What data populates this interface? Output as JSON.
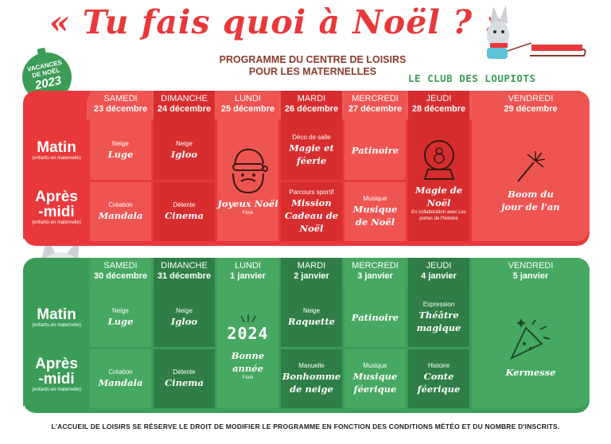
{
  "title": "« Tu fais quoi à Noël ? »",
  "subtitle_line1": "PROGRAMME DU CENTRE DE LOISIRS",
  "subtitle_line2": "POUR LES MATERNELLES",
  "club_name": "LE CLUB DES LOUPIOTS",
  "badge": {
    "line1": "VACANCES",
    "line2": "DE NOËL",
    "year": "2023"
  },
  "row_labels": {
    "morning": "Matin",
    "afternoon_1": "Après",
    "afternoon_2": "-midi",
    "sub": "(enfants en maternelle)"
  },
  "week1": {
    "days": [
      {
        "name": "SAMEDI",
        "date": "23 décembre"
      },
      {
        "name": "DIMANCHE",
        "date": "24 décembre"
      },
      {
        "name": "LUNDI",
        "date": "25 décembre"
      },
      {
        "name": "MARDI",
        "date": "26 décembre"
      },
      {
        "name": "MERCREDI",
        "date": "27 décembre"
      },
      {
        "name": "JEUDI",
        "date": "28 décembre"
      },
      {
        "name": "VENDREDI",
        "date": "29 décembre"
      }
    ],
    "morning": [
      {
        "cap": "Neige",
        "act": "Luge"
      },
      {
        "cap": "Neige",
        "act": "Igloo"
      },
      {
        "cap": "",
        "act": ""
      },
      {
        "cap": "Déco de salle",
        "act": "Magie et féerie"
      },
      {
        "cap": "",
        "act": "Patinoire"
      },
      {
        "cap": "",
        "act": ""
      },
      {
        "cap": "",
        "act": ""
      }
    ],
    "afternoon": [
      {
        "cap": "Création",
        "act": "Mandala"
      },
      {
        "cap": "Détente",
        "act": "Cinema"
      },
      {
        "cap": "",
        "act": ""
      },
      {
        "cap": "Parcours sportif",
        "act": "Mission Cadeau de Noël"
      },
      {
        "cap": "Musique",
        "act": "Musique de Noël"
      },
      {
        "cap": "",
        "act": ""
      },
      {
        "cap": "",
        "act": ""
      }
    ],
    "lundi_full": {
      "act": "Joyeux Noël",
      "note": "Férié"
    },
    "jeudi_full": {
      "act": "Magie de Noël",
      "note": "En collaboration avec Les portes de l'histoire"
    },
    "vendredi_full": {
      "act": "Boom du jour de l'an"
    }
  },
  "week2": {
    "days": [
      {
        "name": "SAMEDI",
        "date": "30 décembre"
      },
      {
        "name": "DIMANCHE",
        "date": "31 décembre"
      },
      {
        "name": "LUNDI",
        "date": "1 janvier"
      },
      {
        "name": "MARDI",
        "date": "2 janvier"
      },
      {
        "name": "MERCREDI",
        "date": "3 janvier"
      },
      {
        "name": "JEUDI",
        "date": "4 janvier"
      },
      {
        "name": "VENDREDI",
        "date": "5 janvier"
      }
    ],
    "morning": [
      {
        "cap": "Neige",
        "act": "Luge"
      },
      {
        "cap": "Neige",
        "act": "Igloo"
      },
      {
        "cap": "",
        "act": ""
      },
      {
        "cap": "Neige",
        "act": "Raquette"
      },
      {
        "cap": "",
        "act": "Patinoire"
      },
      {
        "cap": "Expression",
        "act": "Théâtre magique"
      },
      {
        "cap": "",
        "act": ""
      }
    ],
    "afternoon": [
      {
        "cap": "Création",
        "act": "Mandala"
      },
      {
        "cap": "Détente",
        "act": "Cinema"
      },
      {
        "cap": "",
        "act": ""
      },
      {
        "cap": "Manuelle",
        "act": "Bonhomme de neige"
      },
      {
        "cap": "Musique",
        "act": "Musique féerique"
      },
      {
        "cap": "Histoire",
        "act": "Conte féerique"
      },
      {
        "cap": "",
        "act": ""
      }
    ],
    "lundi_full": {
      "year": "2024",
      "act": "Bonne année",
      "note": "Férié"
    },
    "vendredi_full": {
      "act": "Kermesse"
    }
  },
  "footer": "L'ACCUEIL DE LOISIRS SE RÉSERVE LE DROIT DE MODIFIER LE PROGRAMME EN FONCTION DES CONDITIONS MÉTÉO ET DU NOMBRE D'INSCRITS."
}
